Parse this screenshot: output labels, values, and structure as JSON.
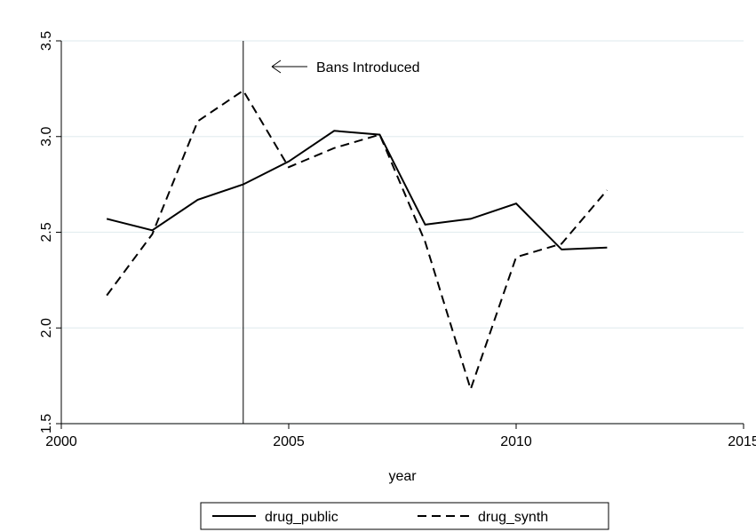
{
  "chart_data": {
    "type": "line",
    "title": "",
    "xlabel": "year",
    "ylabel": "",
    "xlim": [
      2000,
      2015
    ],
    "ylim": [
      1.5,
      3.5
    ],
    "xticks": [
      2000,
      2005,
      2010,
      2015
    ],
    "xtick_labels": [
      "2000",
      "2005",
      "2010",
      "2015"
    ],
    "yticks": [
      1.5,
      2.0,
      2.5,
      3.0,
      3.5
    ],
    "ytick_labels": [
      "1.5",
      "2.0",
      "2.5",
      "3.0",
      "3.5"
    ],
    "grid": "horizontal",
    "legend_position": "bottom",
    "annotation": {
      "x": 2004,
      "text": "Bans Introduced"
    },
    "series": [
      {
        "name": "drug_public",
        "style": "solid",
        "color": "#000000",
        "x": [
          2001,
          2002,
          2003,
          2004,
          2005,
          2006,
          2007,
          2008,
          2009,
          2010,
          2011,
          2012
        ],
        "y": [
          2.57,
          2.51,
          2.67,
          2.75,
          2.87,
          3.03,
          3.01,
          2.54,
          2.57,
          2.65,
          2.41,
          2.42
        ]
      },
      {
        "name": "drug_synth",
        "style": "dashed",
        "color": "#000000",
        "x": [
          2001,
          2002,
          2003,
          2004,
          2005,
          2006,
          2007,
          2008,
          2009,
          2010,
          2011,
          2012
        ],
        "y": [
          2.17,
          2.49,
          3.08,
          3.24,
          2.84,
          2.94,
          3.01,
          2.45,
          1.68,
          2.37,
          2.44,
          2.72
        ]
      }
    ]
  }
}
